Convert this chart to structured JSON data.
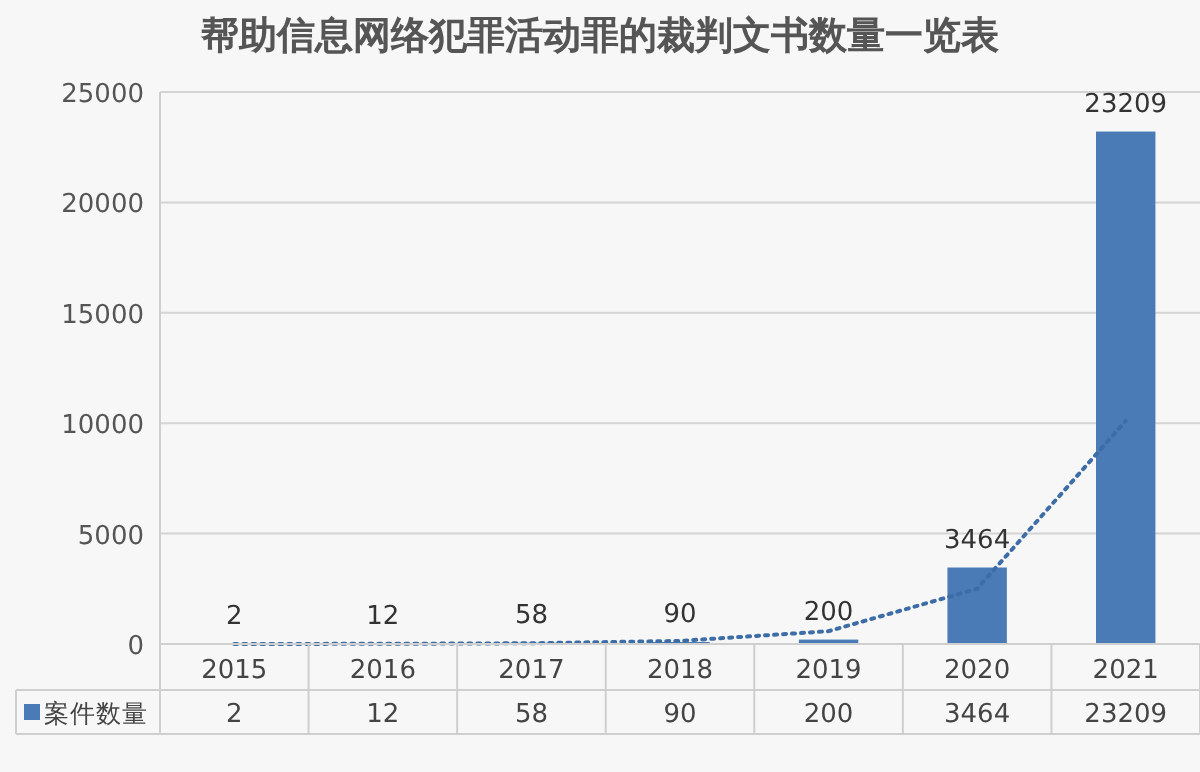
{
  "chart_data": {
    "type": "bar",
    "title": "帮助信息网络犯罪活动罪的裁判文书数量一览表",
    "categories": [
      "2015",
      "2016",
      "2017",
      "2018",
      "2019",
      "2020",
      "2021"
    ],
    "series": [
      {
        "name": "案件数量",
        "color": "#4a7bb7",
        "values": [
          2,
          12,
          58,
          90,
          200,
          3464,
          23209
        ],
        "value_labels": [
          "2",
          "12",
          "58",
          "90",
          "200",
          "3464",
          "23209"
        ]
      },
      {
        "type": "line",
        "color": "#3d6da6",
        "line_style": "dotted",
        "marker": "none",
        "values": [
          2,
          8,
          33,
          140,
          580,
          2500,
          10100
        ]
      }
    ],
    "ylim": [
      0,
      25000
    ],
    "yticks": [
      0,
      5000,
      10000,
      15000,
      20000,
      25000
    ],
    "grid": "y",
    "legend": "bottom"
  }
}
